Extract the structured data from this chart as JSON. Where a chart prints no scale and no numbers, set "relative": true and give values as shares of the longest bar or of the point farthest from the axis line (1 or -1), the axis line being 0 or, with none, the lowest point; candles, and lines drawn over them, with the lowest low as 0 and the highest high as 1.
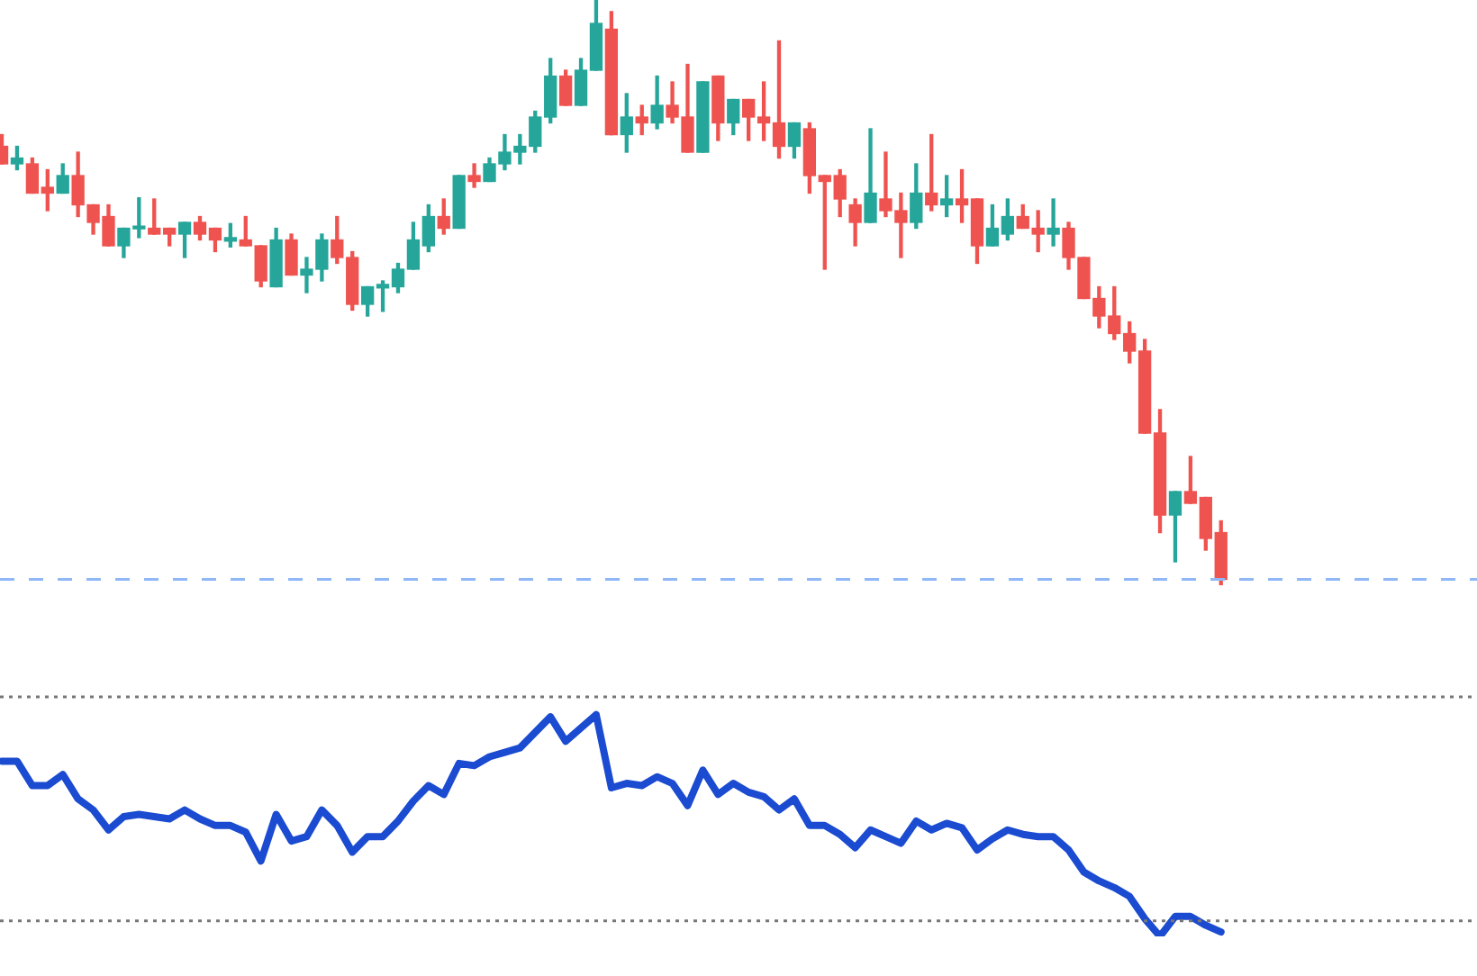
{
  "chart_data": [
    {
      "type": "candlestick",
      "relative": true,
      "categories": [
        null,
        null,
        null,
        null,
        null,
        null,
        null,
        null,
        null,
        null,
        null,
        null,
        null,
        null,
        null,
        null,
        null,
        null,
        null,
        null,
        null,
        null,
        null,
        null,
        null,
        null,
        null,
        null,
        null,
        null,
        null,
        null,
        null,
        null,
        null,
        null,
        null,
        null,
        null,
        null,
        null,
        null,
        null,
        null,
        null,
        null,
        null,
        null,
        null,
        null,
        null,
        null,
        null,
        null,
        null,
        null,
        null,
        null,
        null,
        null,
        null,
        null,
        null,
        null,
        null,
        null,
        null,
        null,
        null,
        null,
        null,
        null,
        null,
        null,
        null,
        null,
        null,
        null,
        null,
        null,
        null
      ],
      "ohlc": [
        [
          0.75,
          0.77,
          0.72,
          0.72
        ],
        [
          0.72,
          0.75,
          0.71,
          0.73
        ],
        [
          0.72,
          0.73,
          0.67,
          0.67
        ],
        [
          0.68,
          0.71,
          0.64,
          0.67
        ],
        [
          0.67,
          0.72,
          0.67,
          0.7
        ],
        [
          0.7,
          0.74,
          0.63,
          0.65
        ],
        [
          0.65,
          0.65,
          0.6,
          0.62
        ],
        [
          0.63,
          0.65,
          0.58,
          0.58
        ],
        [
          0.58,
          0.61,
          0.56,
          0.61
        ],
        [
          0.609,
          0.662,
          0.594,
          0.612
        ],
        [
          0.61,
          0.66,
          0.6,
          0.6
        ],
        [
          0.61,
          0.61,
          0.58,
          0.6
        ],
        [
          0.6,
          0.62,
          0.56,
          0.62
        ],
        [
          0.62,
          0.63,
          0.59,
          0.6
        ],
        [
          0.61,
          0.61,
          0.57,
          0.59
        ],
        [
          0.588,
          0.618,
          0.578,
          0.594
        ],
        [
          0.59,
          0.63,
          0.58,
          0.58
        ],
        [
          0.58,
          0.58,
          0.51,
          0.52
        ],
        [
          0.51,
          0.61,
          0.51,
          0.59
        ],
        [
          0.59,
          0.6,
          0.53,
          0.53
        ],
        [
          0.53,
          0.56,
          0.5,
          0.54
        ],
        [
          0.54,
          0.6,
          0.52,
          0.59
        ],
        [
          0.59,
          0.63,
          0.55,
          0.56
        ],
        [
          0.56,
          0.57,
          0.47,
          0.48
        ],
        [
          0.48,
          0.51,
          0.46,
          0.51
        ],
        [
          0.508,
          0.52,
          0.468,
          0.514
        ],
        [
          0.51,
          0.55,
          0.5,
          0.54
        ],
        [
          0.54,
          0.62,
          0.54,
          0.59
        ],
        [
          0.58,
          0.65,
          0.57,
          0.63
        ],
        [
          0.63,
          0.66,
          0.6,
          0.61
        ],
        [
          0.61,
          0.7,
          0.61,
          0.7
        ],
        [
          0.7,
          0.72,
          0.68,
          0.69
        ],
        [
          0.69,
          0.73,
          0.69,
          0.72
        ],
        [
          0.72,
          0.77,
          0.71,
          0.74
        ],
        [
          0.74,
          0.77,
          0.72,
          0.75
        ],
        [
          0.75,
          0.81,
          0.74,
          0.8
        ],
        [
          0.8,
          0.9,
          0.79,
          0.87
        ],
        [
          0.87,
          0.88,
          0.82,
          0.82
        ],
        [
          0.82,
          0.9,
          0.82,
          0.88
        ],
        [
          0.88,
          1,
          0.88,
          0.96
        ],
        [
          0.95,
          0.98,
          0.77,
          0.77
        ],
        [
          0.77,
          0.84,
          0.74,
          0.8
        ],
        [
          0.8,
          0.82,
          0.77,
          0.79
        ],
        [
          0.79,
          0.87,
          0.78,
          0.82
        ],
        [
          0.82,
          0.86,
          0.79,
          0.8
        ],
        [
          0.8,
          0.89,
          0.74,
          0.74
        ],
        [
          0.74,
          0.86,
          0.74,
          0.86
        ],
        [
          0.87,
          0.87,
          0.76,
          0.79
        ],
        [
          0.79,
          0.83,
          0.77,
          0.83
        ],
        [
          0.83,
          0.83,
          0.76,
          0.8
        ],
        [
          0.8,
          0.86,
          0.76,
          0.79
        ],
        [
          0.79,
          0.93,
          0.73,
          0.75
        ],
        [
          0.75,
          0.79,
          0.73,
          0.79
        ],
        [
          0.78,
          0.79,
          0.67,
          0.7
        ],
        [
          0.7,
          0.7,
          0.54,
          0.69
        ],
        [
          0.7,
          0.71,
          0.63,
          0.66
        ],
        [
          0.65,
          0.66,
          0.58,
          0.62
        ],
        [
          0.62,
          0.78,
          0.62,
          0.67
        ],
        [
          0.66,
          0.74,
          0.63,
          0.64
        ],
        [
          0.64,
          0.67,
          0.56,
          0.62
        ],
        [
          0.62,
          0.72,
          0.61,
          0.67
        ],
        [
          0.67,
          0.77,
          0.64,
          0.65
        ],
        [
          0.65,
          0.7,
          0.63,
          0.66
        ],
        [
          0.66,
          0.71,
          0.62,
          0.65
        ],
        [
          0.66,
          0.66,
          0.55,
          0.58
        ],
        [
          0.58,
          0.65,
          0.58,
          0.61
        ],
        [
          0.6,
          0.66,
          0.59,
          0.63
        ],
        [
          0.63,
          0.65,
          0.61,
          0.61
        ],
        [
          0.61,
          0.64,
          0.57,
          0.6
        ],
        [
          0.6,
          0.66,
          0.58,
          0.61
        ],
        [
          0.61,
          0.62,
          0.54,
          0.56
        ],
        [
          0.56,
          0.56,
          0.49,
          0.49
        ],
        [
          0.49,
          0.51,
          0.44,
          0.46
        ],
        [
          0.46,
          0.51,
          0.42,
          0.43
        ],
        [
          0.43,
          0.45,
          0.38,
          0.4
        ],
        [
          0.4,
          0.42,
          0.26,
          0.26
        ],
        [
          0.26,
          0.3,
          0.09,
          0.12
        ],
        [
          0.12,
          0.16,
          0.04,
          0.16
        ],
        [
          0.16,
          0.22,
          0.14,
          0.14
        ],
        [
          0.15,
          0.15,
          0.06,
          0.08
        ],
        [
          0.09,
          0.11,
          0,
          0.01
        ]
      ],
      "colors": [
        "#ef5350",
        "#26a69a",
        "#ef5350",
        "#ef5350",
        "#26a69a",
        "#ef5350",
        "#ef5350",
        "#ef5350",
        "#26a69a",
        "#26a69a",
        "#ef5350",
        "#ef5350",
        "#26a69a",
        "#ef5350",
        "#ef5350",
        "#26a69a",
        "#ef5350",
        "#ef5350",
        "#26a69a",
        "#ef5350",
        "#26a69a",
        "#26a69a",
        "#ef5350",
        "#ef5350",
        "#26a69a",
        "#26a69a",
        "#26a69a",
        "#26a69a",
        "#26a69a",
        "#ef5350",
        "#26a69a",
        "#ef5350",
        "#26a69a",
        "#26a69a",
        "#26a69a",
        "#26a69a",
        "#26a69a",
        "#ef5350",
        "#26a69a",
        "#26a69a",
        "#ef5350",
        "#26a69a",
        "#ef5350",
        "#26a69a",
        "#ef5350",
        "#ef5350",
        "#26a69a",
        "#ef5350",
        "#26a69a",
        "#ef5350",
        "#ef5350",
        "#ef5350",
        "#26a69a",
        "#ef5350",
        "#ef5350",
        "#ef5350",
        "#ef5350",
        "#26a69a",
        "#ef5350",
        "#ef5350",
        "#26a69a",
        "#ef5350",
        "#26a69a",
        "#ef5350",
        "#ef5350",
        "#26a69a",
        "#26a69a",
        "#ef5350",
        "#ef5350",
        "#26a69a",
        "#ef5350",
        "#ef5350",
        "#ef5350",
        "#ef5350",
        "#ef5350",
        "#ef5350",
        "#ef5350",
        "#26a69a",
        "#ef5350",
        "#ef5350",
        "#ef5350"
      ],
      "ref_lines": [
        {
          "axis": "y",
          "value": 0.01,
          "color": "#90b8f8",
          "line_style": "dashed"
        }
      ]
    },
    {
      "type": "line",
      "relative": true,
      "marker": "none",
      "categories": [
        null,
        null,
        null,
        null,
        null,
        null,
        null,
        null,
        null,
        null,
        null,
        null,
        null,
        null,
        null,
        null,
        null,
        null,
        null,
        null,
        null,
        null,
        null,
        null,
        null,
        null,
        null,
        null,
        null,
        null,
        null,
        null,
        null,
        null,
        null,
        null,
        null,
        null,
        null,
        null,
        null,
        null,
        null,
        null,
        null,
        null,
        null,
        null,
        null,
        null,
        null,
        null,
        null,
        null,
        null,
        null,
        null,
        null,
        null,
        null,
        null,
        null,
        null,
        null,
        null,
        null,
        null,
        null,
        null,
        null,
        null,
        null,
        null,
        null,
        null,
        null,
        null,
        null,
        null,
        null,
        null
      ],
      "series": [
        {
          "color": "#1a4bd0",
          "values": [
            0.79,
            0.79,
            0.68,
            0.68,
            0.73,
            0.62,
            0.57,
            0.48,
            0.54,
            0.55,
            0.54,
            0.53,
            0.57,
            0.53,
            0.5,
            0.5,
            0.47,
            0.34,
            0.55,
            0.43,
            0.45,
            0.57,
            0.5,
            0.38,
            0.45,
            0.45,
            0.52,
            0.61,
            0.68,
            0.64,
            0.78,
            0.77,
            0.81,
            0.83,
            0.85,
            0.92,
            0.99,
            0.88,
            0.94,
            1,
            0.67,
            0.69,
            0.68,
            0.72,
            0.69,
            0.59,
            0.75,
            0.64,
            0.69,
            0.65,
            0.63,
            0.57,
            0.62,
            0.5,
            0.5,
            0.46,
            0.4,
            0.48,
            0.45,
            0.42,
            0.52,
            0.48,
            0.51,
            0.49,
            0.39,
            0.44,
            0.48,
            0.46,
            0.45,
            0.45,
            0.39,
            0.29,
            0.25,
            0.22,
            0.18,
            0.08,
            0,
            0.09,
            0.09,
            0.05,
            0.02
          ]
        }
      ],
      "ref_lines": [
        {
          "axis": "y",
          "value": 1.08,
          "color": "#777777",
          "line_style": "dotted"
        },
        {
          "axis": "y",
          "value": 0.07,
          "color": "#777777",
          "line_style": "dotted"
        }
      ]
    }
  ]
}
